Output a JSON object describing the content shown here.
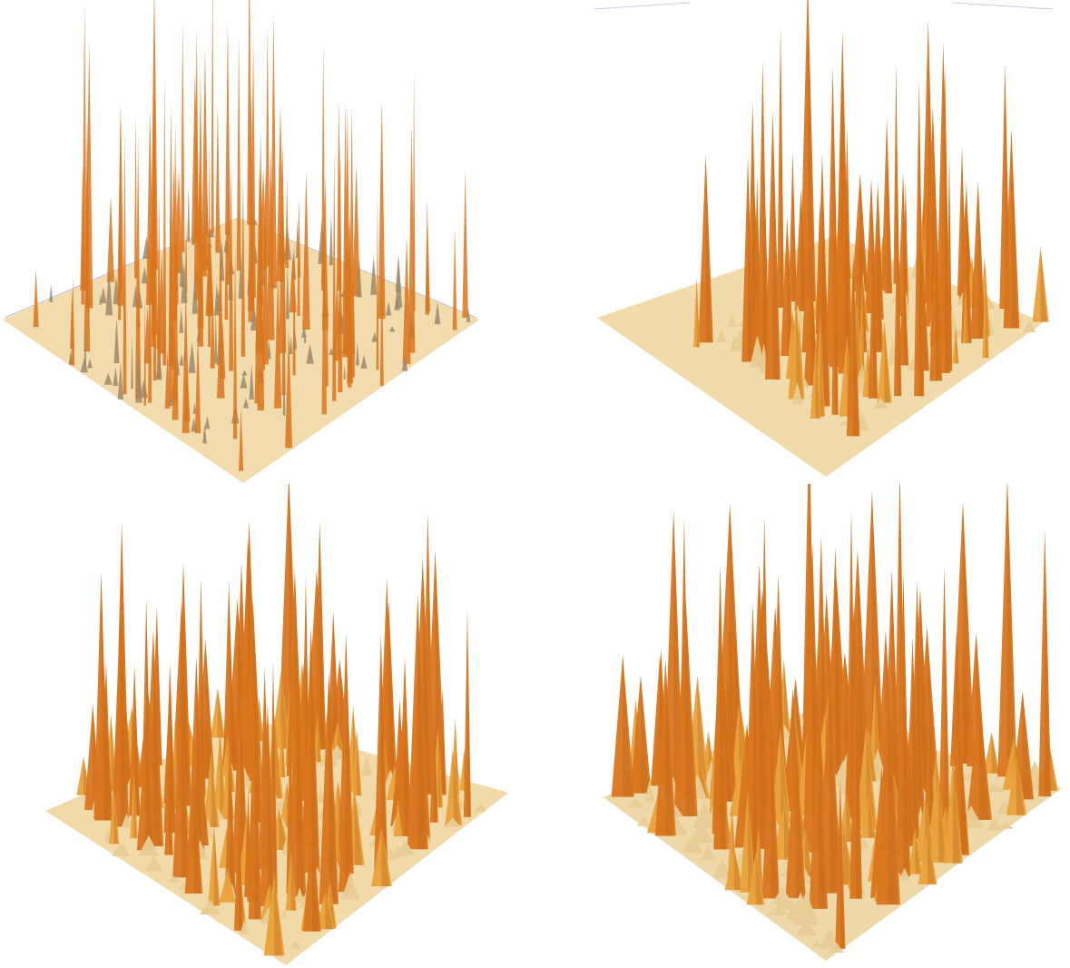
{
  "figure": {
    "panels": [
      {
        "id": "p1",
        "surface": "3d-surface-plot",
        "roughness": "very-spiky"
      },
      {
        "id": "p2",
        "surface": "3d-surface-plot",
        "roughness": "clustered-peaks"
      },
      {
        "id": "p3",
        "surface": "3d-surface-plot",
        "roughness": "dense-peaks"
      },
      {
        "id": "p4",
        "surface": "3d-surface-plot",
        "roughness": "dense-rough"
      }
    ]
  },
  "colors": {
    "background": "#ffffff",
    "base_light": "#f7e4b8",
    "base_mid": "#e8cc95",
    "peak_gold": "#e9a23b",
    "peak_orange": "#d9761e",
    "peak_dark": "#b9651c",
    "shadow_gray": "#9c8a6a",
    "box_line": "#b7bcd6"
  }
}
